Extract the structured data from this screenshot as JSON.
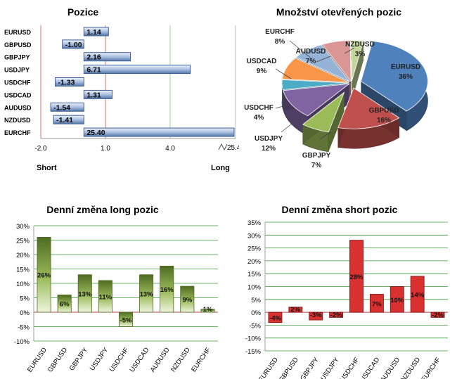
{
  "chart_data": [
    {
      "type": "bar",
      "orientation": "horizontal",
      "title": "Pozice",
      "categories": [
        "EURUSD",
        "GBPUSD",
        "GBPJPY",
        "USDJPY",
        "USDCHF",
        "USDCAD",
        "AUDUSD",
        "NZDUSD",
        "EURCHF"
      ],
      "values": [
        1.14,
        -1.0,
        2.16,
        6.71,
        -1.33,
        1.31,
        -1.54,
        -1.41,
        25.4
      ],
      "value_labels": [
        "1.14",
        "-1.00",
        "2.16",
        "6.71",
        "-1.33",
        "1.31",
        "-1.54",
        "-1.41",
        "25.40"
      ],
      "x_ticks": [
        "-2.0",
        "1.0",
        "4.0"
      ],
      "axis_break_label": "25.4",
      "xlim": [
        -2.0,
        25.4
      ],
      "left_label": "Short",
      "right_label": "Long",
      "colors": {
        "bar_fill": "#a9bfe0",
        "bar_stroke": "#3d5f94",
        "reference_line": "#e07070",
        "grid": "#9fd59f"
      }
    },
    {
      "type": "pie",
      "title": "Množství otevřených pozic",
      "slices": [
        {
          "label": "EURUSD",
          "value": 36,
          "text": "36%",
          "color": "#4f81bd"
        },
        {
          "label": "GBPUSD",
          "value": 16,
          "text": "16%",
          "color": "#c0504d"
        },
        {
          "label": "GBPJPY",
          "value": 7,
          "text": "7%",
          "color": "#9bbb59"
        },
        {
          "label": "USDJPY",
          "value": 12,
          "text": "12%",
          "color": "#8064a2"
        },
        {
          "label": "USDCHF",
          "value": 4,
          "text": "4%",
          "color": "#4bacc6"
        },
        {
          "label": "USDCAD",
          "value": 9,
          "text": "9%",
          "color": "#f79646"
        },
        {
          "label": "EURCHF",
          "value": 8,
          "text": "8%",
          "color": "#95b3d7"
        },
        {
          "label": "AUDUSD",
          "value": 7,
          "text": "7%",
          "color": "#d99694"
        },
        {
          "label": "NZDUSD",
          "value": 3,
          "text": "3%",
          "color": "#c3d69b"
        }
      ]
    },
    {
      "type": "bar",
      "title": "Denní změna long pozic",
      "categories": [
        "EURUSD",
        "GBPUSD",
        "GBPJPY",
        "USDJPY",
        "USDCHF",
        "USDCAD",
        "AUDUSD",
        "NZDUSD",
        "EURCHF"
      ],
      "values": [
        26,
        6,
        13,
        11,
        -5,
        13,
        16,
        9,
        1
      ],
      "value_labels": [
        "26%",
        "6%",
        "13%",
        "11%",
        "-5%",
        "13%",
        "16%",
        "9%",
        "1%"
      ],
      "y_ticks": [
        "30%",
        "25%",
        "20%",
        "15%",
        "10%",
        "5%",
        "0%",
        "-5%",
        "-10%"
      ],
      "ylim": [
        -10,
        30
      ],
      "colors": {
        "bar_top": "#4f6b22",
        "bar_bottom": "#e9f2d6",
        "grid": "#3a9a3a",
        "baseline": "#c04040"
      }
    },
    {
      "type": "bar",
      "title": "Denní změna short pozic",
      "categories": [
        "EURUSD",
        "GBPUSD",
        "GBPJPY",
        "USDJPY",
        "USDCHF",
        "USDCAD",
        "AUDUSD",
        "NZDUSD",
        "EURCHF"
      ],
      "values": [
        -4,
        2,
        -3,
        -2,
        28,
        7,
        10,
        14,
        -2
      ],
      "value_labels": [
        "-4%",
        "2%",
        "-3%",
        "-2%",
        "28%",
        "7%",
        "10%",
        "14%",
        "-2%"
      ],
      "y_ticks": [
        "35%",
        "30%",
        "25%",
        "20%",
        "15%",
        "10%",
        "5%",
        "0%",
        "-5%",
        "-10%",
        "-15%"
      ],
      "ylim": [
        -15,
        35
      ],
      "colors": {
        "bar_fill": "#d93030",
        "bar_stroke": "#7a1010",
        "grid": "#3a9a3a",
        "baseline": "#c04040"
      }
    }
  ]
}
